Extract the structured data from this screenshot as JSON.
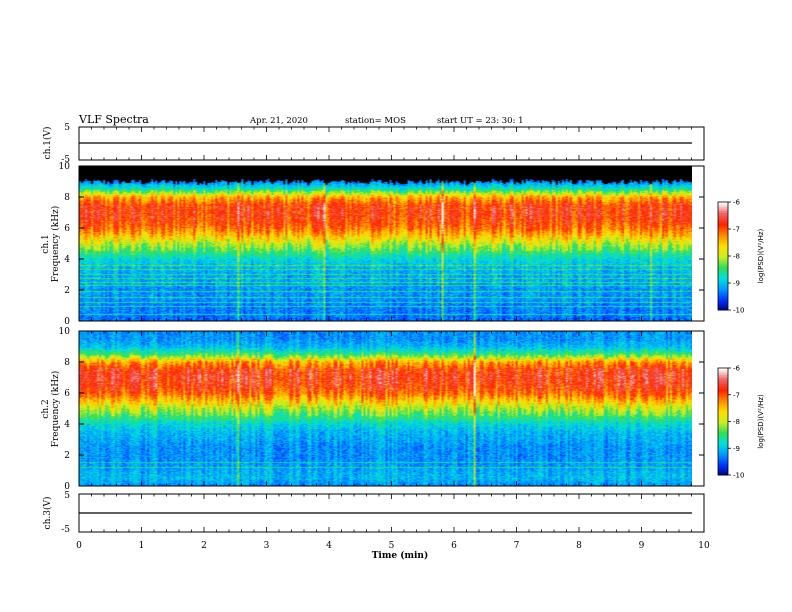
{
  "header": {
    "title": "VLF Spectra",
    "date": "Apr. 21, 2020",
    "station": "station= MOS",
    "start": "start  UT =   23: 30: 1"
  },
  "colors": {
    "colormap": [
      "#00007a",
      "#0033ff",
      "#0099ff",
      "#00e0e0",
      "#33dd55",
      "#ccee22",
      "#ffdd00",
      "#ff8800",
      "#ff2200",
      "#ee6666",
      "#ffffff"
    ],
    "waveform": "#000000",
    "black_band": "#000000"
  },
  "chart_data": [
    {
      "type": "line",
      "name": "ch1-waveform",
      "ylabel": "ch.1(V)",
      "ylim": [
        -5,
        5
      ],
      "yticks": [
        "5",
        "-5"
      ],
      "xlim": [
        0,
        10
      ],
      "values_note": "flat trace near 0 V",
      "y": [
        0,
        0
      ]
    },
    {
      "type": "heatmap",
      "name": "ch1-spectrogram",
      "ylabel_top": "ch.1",
      "ylabel": "Frequency (kHz)",
      "ylim": [
        0,
        10
      ],
      "yticks": [
        "0",
        "2",
        "4",
        "6",
        "8",
        "10"
      ],
      "xlim": [
        0,
        10
      ],
      "data_extent_min": 9.85,
      "profile_freq_khz": [
        0,
        0.5,
        1,
        1.5,
        2,
        2.5,
        3,
        3.5,
        4,
        4.5,
        5,
        5.5,
        6,
        6.5,
        7,
        7.5,
        8,
        8.5,
        9,
        9.5,
        10
      ],
      "profile_log_psd": [
        -9.4,
        -9.3,
        -9.3,
        -9.2,
        -9.2,
        -9.1,
        -9.1,
        -9.0,
        -8.8,
        -8.4,
        -8.0,
        -7.5,
        -7.1,
        -6.9,
        -6.8,
        -6.9,
        -7.4,
        -8.6,
        -9.3,
        -10.5,
        -10.5
      ],
      "saturated_above_khz": 9.0,
      "spike_times_min": [
        2.55,
        3.95,
        5.85,
        6.35,
        9.2
      ],
      "colorbar": {
        "label": "log(PSD)(V²/Hz)",
        "range": [
          -10,
          -6
        ],
        "ticks": [
          "-6",
          "-7",
          "-8",
          "-9",
          "-10"
        ]
      }
    },
    {
      "type": "heatmap",
      "name": "ch2-spectrogram",
      "ylabel_top": "ch.2",
      "ylabel": "Frequency (kHz)",
      "ylim": [
        0,
        10
      ],
      "yticks": [
        "0",
        "2",
        "4",
        "6",
        "8",
        "10"
      ],
      "xlim": [
        0,
        10
      ],
      "data_extent_min": 9.85,
      "profile_freq_khz": [
        0,
        0.5,
        1,
        1.5,
        2,
        2.5,
        3,
        3.5,
        4,
        4.5,
        5,
        5.5,
        6,
        6.5,
        7,
        7.5,
        8,
        8.5,
        9,
        9.5,
        10
      ],
      "profile_log_psd": [
        -9.2,
        -9.0,
        -9.1,
        -9.2,
        -9.2,
        -9.2,
        -9.1,
        -9.0,
        -8.8,
        -8.4,
        -8.0,
        -7.5,
        -7.0,
        -6.8,
        -6.7,
        -6.8,
        -7.3,
        -8.4,
        -9.0,
        -9.2,
        -9.2
      ],
      "spike_times_min": [
        2.55,
        6.35
      ],
      "colorbar": {
        "label": "log(PSD)(V²/Hz)",
        "range": [
          -10,
          -6
        ],
        "ticks": [
          "-6",
          "-7",
          "-8",
          "-9",
          "-10"
        ]
      }
    },
    {
      "type": "line",
      "name": "ch3-waveform",
      "ylabel": "ch.3(V)",
      "ylim": [
        -5,
        5
      ],
      "yticks": [
        "5",
        "-5"
      ],
      "xlim": [
        0,
        10
      ],
      "xlabel": "Time (min)",
      "xticks": [
        "0",
        "1",
        "2",
        "3",
        "4",
        "5",
        "6",
        "7",
        "8",
        "9",
        "10"
      ],
      "y": [
        0,
        0
      ]
    }
  ]
}
